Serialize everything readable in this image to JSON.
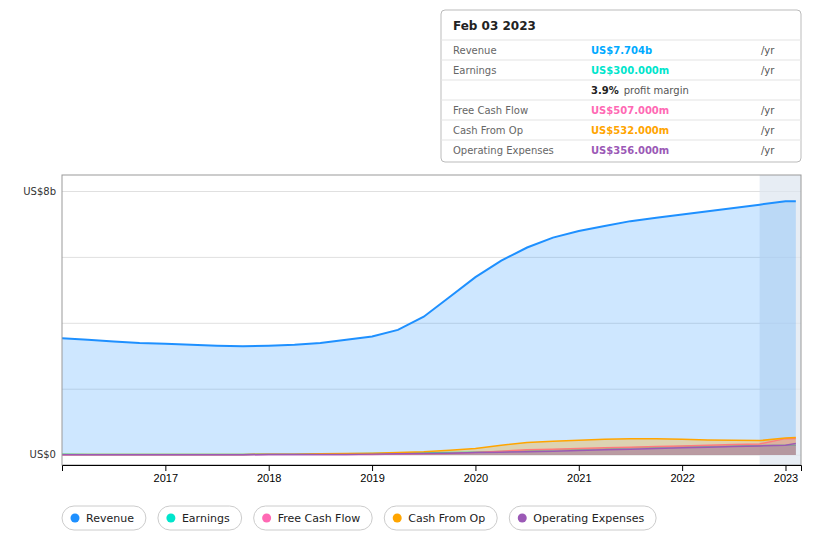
{
  "chart_data": {
    "type": "area",
    "x": [
      2016.0,
      2016.25,
      2016.5,
      2016.75,
      2017.0,
      2017.25,
      2017.5,
      2017.75,
      2018.0,
      2018.25,
      2018.5,
      2018.75,
      2019.0,
      2019.25,
      2019.5,
      2019.75,
      2020.0,
      2020.25,
      2020.5,
      2020.75,
      2021.0,
      2021.25,
      2021.5,
      2021.75,
      2022.0,
      2022.25,
      2022.5,
      2022.75,
      2023.0,
      2023.1
    ],
    "series": [
      {
        "name": "Revenue",
        "color": "#1e90ff",
        "values": [
          3.55,
          3.5,
          3.45,
          3.4,
          3.38,
          3.35,
          3.32,
          3.3,
          3.32,
          3.35,
          3.4,
          3.5,
          3.6,
          3.8,
          4.2,
          4.8,
          5.4,
          5.9,
          6.3,
          6.6,
          6.8,
          6.95,
          7.1,
          7.2,
          7.3,
          7.4,
          7.5,
          7.6,
          7.7,
          7.704
        ]
      },
      {
        "name": "Earnings",
        "color": "#00e5cc",
        "values": [
          0.03,
          0.02,
          0.02,
          0.02,
          0.02,
          0.02,
          0.02,
          0.02,
          0.03,
          0.03,
          0.04,
          0.04,
          0.05,
          0.06,
          0.07,
          0.08,
          0.09,
          0.11,
          0.14,
          0.16,
          0.18,
          0.19,
          0.22,
          0.24,
          0.26,
          0.27,
          0.28,
          0.29,
          0.3,
          0.3
        ]
      },
      {
        "name": "Free Cash Flow",
        "color": "#ff69b4",
        "values": [
          0.01,
          0.01,
          0.01,
          0.01,
          0.01,
          0.01,
          0.01,
          0.01,
          0.02,
          0.02,
          0.02,
          0.02,
          0.02,
          0.03,
          0.04,
          0.05,
          0.08,
          0.12,
          0.16,
          0.18,
          0.2,
          0.22,
          0.24,
          0.26,
          0.28,
          0.3,
          0.32,
          0.34,
          0.5,
          0.507
        ]
      },
      {
        "name": "Cash From Op",
        "color": "#ffa500",
        "values": [
          0.02,
          0.02,
          0.02,
          0.02,
          0.02,
          0.02,
          0.02,
          0.02,
          0.03,
          0.03,
          0.04,
          0.05,
          0.06,
          0.08,
          0.1,
          0.15,
          0.2,
          0.3,
          0.38,
          0.42,
          0.45,
          0.48,
          0.5,
          0.5,
          0.48,
          0.46,
          0.45,
          0.44,
          0.52,
          0.532
        ]
      },
      {
        "name": "Operating Expenses",
        "color": "#9b59b6",
        "values": [
          0.01,
          0.01,
          0.01,
          0.01,
          0.01,
          0.01,
          0.01,
          0.01,
          0.02,
          0.02,
          0.02,
          0.02,
          0.03,
          0.04,
          0.05,
          0.06,
          0.08,
          0.09,
          0.1,
          0.12,
          0.14,
          0.16,
          0.18,
          0.2,
          0.22,
          0.24,
          0.26,
          0.28,
          0.3,
          0.356
        ]
      }
    ],
    "xlim": [
      2016.0,
      2023.15
    ],
    "xticks": [
      2017,
      2018,
      2019,
      2020,
      2021,
      2022,
      2023
    ],
    "ylim": [
      -0.3,
      8.5
    ],
    "yticks": [
      0,
      2,
      4,
      6,
      8
    ],
    "grid": true,
    "tick_labels": "x",
    "legend": "bottom",
    "annotations": [
      "US$8b",
      "US$0"
    ],
    "highlight": [
      2022.75,
      2023.15
    ],
    "tooltip": {
      "title": "Feb 03 2023",
      "rows": [
        {
          "label": "Revenue",
          "value": "US$7.704b",
          "color": "#00aaff",
          "unit": "/yr"
        },
        {
          "label": "Earnings",
          "value": "US$300.000m",
          "color": "#00e5cc",
          "unit": "/yr"
        },
        {
          "value": "3.9%",
          "unit": "profit margin"
        },
        {
          "label": "Free Cash Flow",
          "value": "US$507.000m",
          "color": "#ff69b4",
          "unit": "/yr"
        },
        {
          "label": "Cash From Op",
          "value": "US$532.000m",
          "color": "#ffa500",
          "unit": "/yr"
        },
        {
          "label": "Operating Expenses",
          "value": "US$356.000m",
          "color": "#9b59b6",
          "unit": "/yr"
        }
      ]
    }
  }
}
